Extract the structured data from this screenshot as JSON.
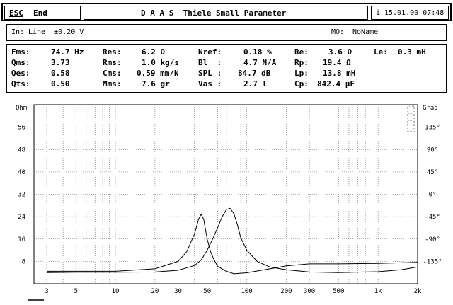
{
  "topbar": {
    "esc_label": "ESC",
    "end_label": "End",
    "title": "D A A S  Thiele Small Parameter",
    "info_key": "i",
    "datetime": "15.01.00 07:48"
  },
  "infobar": {
    "input_label": "In:",
    "input_value": "Line  ±0.20 V",
    "mo_label": "MO:",
    "mo_value": "NoName"
  },
  "params": {
    "fms": {
      "label": "Fms:",
      "value": "74.7 Hz"
    },
    "qms": {
      "label": "Qms:",
      "value": "3.73"
    },
    "qes": {
      "label": "Qes:",
      "value": "0.58"
    },
    "qts": {
      "label": "Qts:",
      "value": "0.50"
    },
    "res": {
      "label": "Res:",
      "value": "6.2 Ω"
    },
    "rms": {
      "label": "Rms:",
      "value": "1.0 kg/s"
    },
    "cms": {
      "label": "Cms:",
      "value": "0.59 mm/N"
    },
    "mms": {
      "label": "Mms:",
      "value": "7.6 gr"
    },
    "nref": {
      "label": "Nref:",
      "value": "0.18 %"
    },
    "bl": {
      "label": "Bl  :",
      "value": "4.7 N/A"
    },
    "spl": {
      "label": "SPL :",
      "value": "84.7 dB"
    },
    "vas": {
      "label": "Vas :",
      "value": "2.7 l"
    },
    "re": {
      "label": "Re:",
      "value": "3.6 Ω"
    },
    "rp": {
      "label": "Rp:",
      "value": "19.4 Ω"
    },
    "lp": {
      "label": "Lp:",
      "value": "13.8 mH"
    },
    "cp": {
      "label": "Cp:",
      "value": "842.4 µF"
    },
    "le": {
      "label": "Le:",
      "value": "0.3 mH"
    }
  },
  "chart_data": {
    "type": "line",
    "xscale": "log",
    "xlim": [
      2.4,
      2000
    ],
    "x_ticks": [
      {
        "v": 3,
        "label": "3"
      },
      {
        "v": 5,
        "label": "5"
      },
      {
        "v": 10,
        "label": "10"
      },
      {
        "v": 20,
        "label": "20"
      },
      {
        "v": 30,
        "label": "30"
      },
      {
        "v": 50,
        "label": "50"
      },
      {
        "v": 100,
        "label": "100"
      },
      {
        "v": 200,
        "label": "200"
      },
      {
        "v": 300,
        "label": "300"
      },
      {
        "v": 500,
        "label": "500"
      },
      {
        "v": 1000,
        "label": "1k"
      },
      {
        "v": 2000,
        "label": "2k"
      }
    ],
    "left_axis": {
      "unit": "Ohm",
      "ticks": [
        8,
        16,
        24,
        32,
        40,
        48,
        56
      ],
      "ylim": [
        0,
        64
      ]
    },
    "right_axis": {
      "unit": "Grad",
      "ticks": [
        135,
        90,
        45,
        0,
        -45,
        -90,
        -135
      ],
      "labels": [
        "135°",
        "90°",
        "45°",
        "0°",
        "-45°",
        "-90°",
        "-135°"
      ],
      "ylim": [
        -180,
        180
      ]
    },
    "grid": true,
    "series": [
      {
        "x": [
          3,
          5,
          10,
          20,
          30,
          40,
          45,
          50,
          55,
          60,
          65,
          70,
          74.7,
          80,
          85,
          90,
          100,
          120,
          150,
          200,
          300,
          500,
          1000,
          1500,
          2000
        ],
        "y": [
          4.0,
          4.1,
          4.1,
          4.2,
          4.8,
          6.5,
          8.5,
          12.0,
          16.0,
          20.0,
          24.0,
          26.5,
          27.0,
          25.0,
          21.0,
          16.5,
          12.0,
          8.0,
          6.0,
          5.0,
          4.2,
          4.0,
          4.3,
          5.0,
          6.0
        ]
      },
      {
        "x": [
          3,
          10,
          20,
          30,
          35,
          40,
          43,
          45,
          47,
          50,
          53,
          56,
          60,
          70,
          80,
          100,
          150,
          200,
          300,
          500,
          1000,
          2000
        ],
        "y": [
          -155,
          -155,
          -150,
          -135,
          -115,
          -80,
          -50,
          -40,
          -50,
          -90,
          -115,
          -130,
          -145,
          -155,
          -160,
          -158,
          -150,
          -144,
          -140,
          -140,
          -139,
          -137
        ]
      }
    ]
  }
}
